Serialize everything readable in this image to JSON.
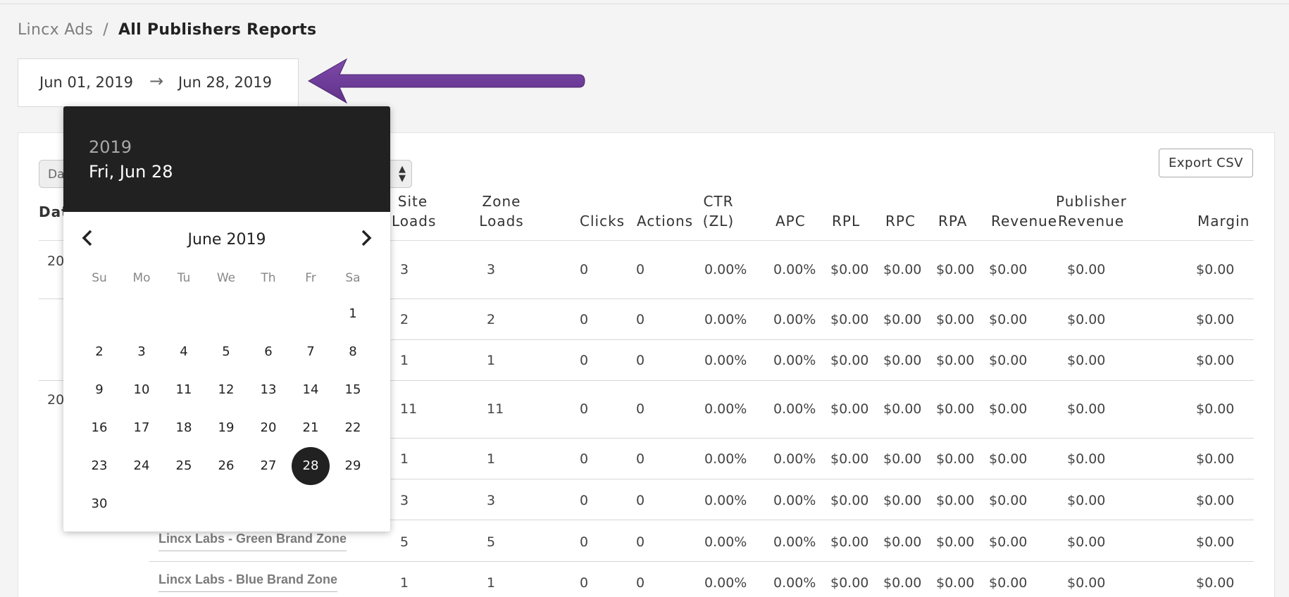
{
  "breadcrumb": {
    "root": "Lincx Ads",
    "separator": "/",
    "current": "All Publishers Reports"
  },
  "date_range": {
    "start": "Jun 01, 2019",
    "arrow": "→",
    "end": "Jun 28, 2019"
  },
  "colors": {
    "annotation_arrow": "#6f3d99",
    "picker_header": "#212121",
    "selected_day": "#212121"
  },
  "filter": {
    "visible_text": "Da",
    "caret": "▲▼"
  },
  "export_button": "Export CSV",
  "columns": {
    "date_partial": "Dat",
    "site_loads": [
      "Site",
      "Loads"
    ],
    "zone_loads": [
      "Zone",
      "Loads"
    ],
    "clicks": "Clicks",
    "actions": "Actions",
    "ctr": [
      "CTR",
      "(ZL)"
    ],
    "apc": "APC",
    "rpl": "RPL",
    "rpc": "RPC",
    "rpa": "RPA",
    "revenue": "Revenue",
    "publisher_revenue": [
      "Publisher",
      "Revenue"
    ],
    "margin": "Margin"
  },
  "date_groups": [
    "20",
    "20"
  ],
  "rows": [
    {
      "zone": "",
      "site_loads": "3",
      "zone_loads": "3",
      "clicks": "0",
      "actions": "0",
      "ctr": "0.00%",
      "apc": "0.00%",
      "rpl": "$0.00",
      "rpc": "$0.00",
      "rpa": "$0.00",
      "revenue": "$0.00",
      "publisher_revenue": "$0.00",
      "margin": "$0.00"
    },
    {
      "zone": "",
      "site_loads": "2",
      "zone_loads": "2",
      "clicks": "0",
      "actions": "0",
      "ctr": "0.00%",
      "apc": "0.00%",
      "rpl": "$0.00",
      "rpc": "$0.00",
      "rpa": "$0.00",
      "revenue": "$0.00",
      "publisher_revenue": "$0.00",
      "margin": "$0.00"
    },
    {
      "zone": "",
      "site_loads": "1",
      "zone_loads": "1",
      "clicks": "0",
      "actions": "0",
      "ctr": "0.00%",
      "apc": "0.00%",
      "rpl": "$0.00",
      "rpc": "$0.00",
      "rpa": "$0.00",
      "revenue": "$0.00",
      "publisher_revenue": "$0.00",
      "margin": "$0.00"
    },
    {
      "zone": "",
      "site_loads": "11",
      "zone_loads": "11",
      "clicks": "0",
      "actions": "0",
      "ctr": "0.00%",
      "apc": "0.00%",
      "rpl": "$0.00",
      "rpc": "$0.00",
      "rpa": "$0.00",
      "revenue": "$0.00",
      "publisher_revenue": "$0.00",
      "margin": "$0.00"
    },
    {
      "zone": "",
      "site_loads": "1",
      "zone_loads": "1",
      "clicks": "0",
      "actions": "0",
      "ctr": "0.00%",
      "apc": "0.00%",
      "rpl": "$0.00",
      "rpc": "$0.00",
      "rpa": "$0.00",
      "revenue": "$0.00",
      "publisher_revenue": "$0.00",
      "margin": "$0.00"
    },
    {
      "zone": "",
      "site_loads": "3",
      "zone_loads": "3",
      "clicks": "0",
      "actions": "0",
      "ctr": "0.00%",
      "apc": "0.00%",
      "rpl": "$0.00",
      "rpc": "$0.00",
      "rpa": "$0.00",
      "revenue": "$0.00",
      "publisher_revenue": "$0.00",
      "margin": "$0.00"
    },
    {
      "zone": "Lincx Labs - Green Brand Zone",
      "site_loads": "5",
      "zone_loads": "5",
      "clicks": "0",
      "actions": "0",
      "ctr": "0.00%",
      "apc": "0.00%",
      "rpl": "$0.00",
      "rpc": "$0.00",
      "rpa": "$0.00",
      "revenue": "$0.00",
      "publisher_revenue": "$0.00",
      "margin": "$0.00"
    },
    {
      "zone": "Lincx Labs - Blue Brand Zone",
      "site_loads": "1",
      "zone_loads": "1",
      "clicks": "0",
      "actions": "0",
      "ctr": "0.00%",
      "apc": "0.00%",
      "rpl": "$0.00",
      "rpc": "$0.00",
      "rpa": "$0.00",
      "revenue": "$0.00",
      "publisher_revenue": "$0.00",
      "margin": "$0.00"
    }
  ],
  "datepicker": {
    "year": "2019",
    "selected_label": "Fri, Jun 28",
    "month_label": "June 2019",
    "prev_icon": "chevron-left-icon",
    "next_icon": "chevron-right-icon",
    "weekdays": [
      "Su",
      "Mo",
      "Tu",
      "We",
      "Th",
      "Fr",
      "Sa"
    ],
    "selected_day": "28",
    "weeks": [
      [
        "",
        "",
        "",
        "",
        "",
        "",
        "1"
      ],
      [
        "2",
        "3",
        "4",
        "5",
        "6",
        "7",
        "8"
      ],
      [
        "9",
        "10",
        "11",
        "12",
        "13",
        "14",
        "15"
      ],
      [
        "16",
        "17",
        "18",
        "19",
        "20",
        "21",
        "22"
      ],
      [
        "23",
        "24",
        "25",
        "26",
        "27",
        "28",
        "29"
      ],
      [
        "30",
        "",
        "",
        "",
        "",
        "",
        ""
      ]
    ]
  }
}
